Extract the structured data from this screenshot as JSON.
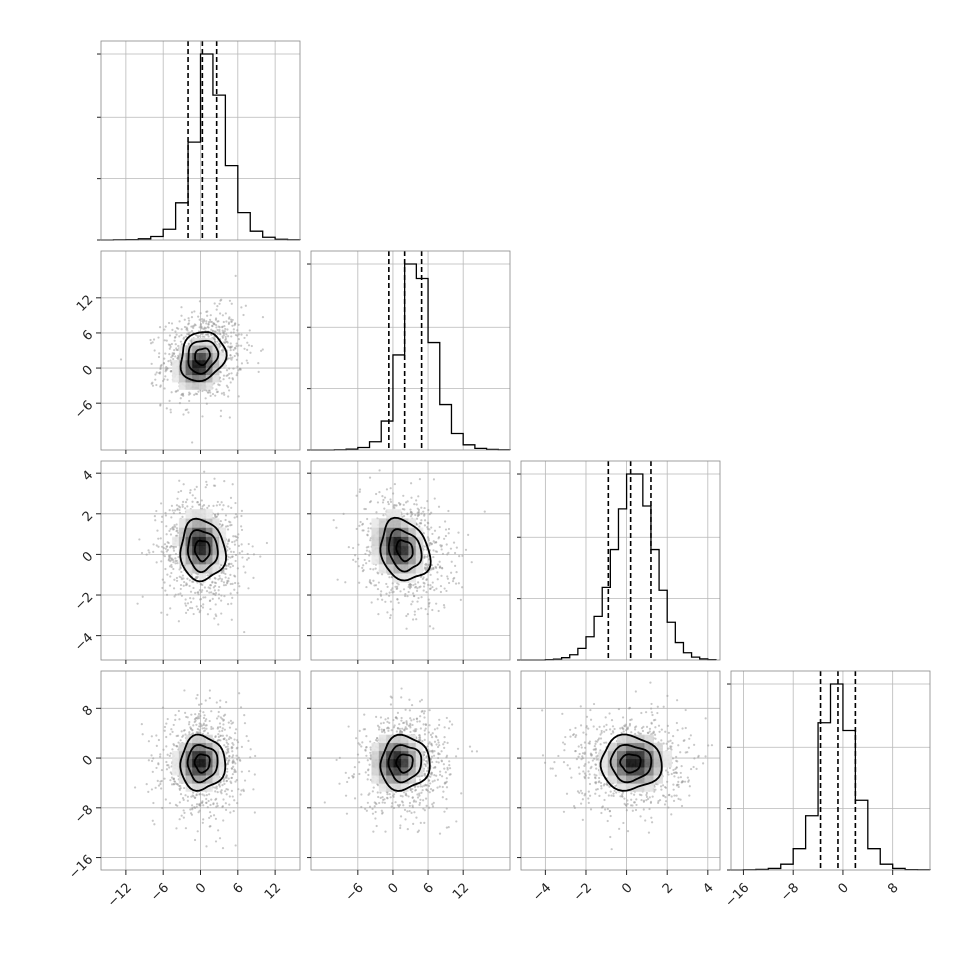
{
  "chart_data": {
    "type": "corner",
    "n_parameters": 4,
    "colors": {
      "line": "#000000",
      "scatter": "#9a9a9a",
      "grid": "#b8b8b8",
      "frame": "#888888",
      "density_dark": "#000000",
      "density_light": "#ffffff"
    },
    "grid": true,
    "parameters": [
      {
        "range": [
          -16,
          16
        ],
        "ticks": [
          -12,
          -6,
          0,
          6,
          12
        ],
        "tick_labels": [
          "−12",
          "−6",
          "0",
          "6",
          "12"
        ],
        "mean": 0.3,
        "sd": 2.4,
        "quantiles": [
          -2.0,
          0.3,
          2.6
        ],
        "hist_bins": [
          -16,
          -14,
          -12,
          -10,
          -8,
          -6,
          -4,
          -2,
          0,
          2,
          4,
          6,
          8,
          10,
          12,
          14,
          16
        ],
        "hist_values": [
          0,
          1,
          2,
          6,
          18,
          55,
          190,
          500,
          950,
          740,
          380,
          140,
          45,
          14,
          4,
          1
        ]
      },
      {
        "range": [
          -14,
          20
        ],
        "ticks": [
          -6,
          0,
          6,
          12
        ],
        "tick_labels": [
          "−6",
          "0",
          "6",
          "12"
        ],
        "mean": 2.0,
        "sd": 2.8,
        "quantiles": [
          -0.7,
          2.0,
          4.9
        ],
        "hist_bins": [
          -14,
          -12,
          -10,
          -8,
          -6,
          -4,
          -2,
          0,
          2,
          4,
          6,
          8,
          10,
          12,
          14,
          16,
          18,
          20
        ],
        "hist_values": [
          0,
          0,
          1,
          4,
          12,
          40,
          140,
          460,
          900,
          830,
          520,
          220,
          80,
          25,
          8,
          3,
          1
        ]
      },
      {
        "range": [
          -5.2,
          4.6
        ],
        "ticks": [
          -4,
          -2,
          0,
          2,
          4
        ],
        "tick_labels": [
          "−4",
          "−2",
          "0",
          "2",
          "4"
        ],
        "mean": 0.2,
        "sd": 1.0,
        "quantiles": [
          -0.9,
          0.2,
          1.2
        ],
        "hist_bins": [
          -5.2,
          -4.8,
          -4.4,
          -4.0,
          -3.6,
          -3.2,
          -2.8,
          -2.4,
          -2.0,
          -1.6,
          -1.2,
          -0.8,
          -0.4,
          0.0,
          0.4,
          0.8,
          1.2,
          1.6,
          2.0,
          2.4,
          2.8,
          3.2,
          3.6,
          4.0,
          4.4
        ],
        "hist_values": [
          0,
          0,
          0,
          1,
          3,
          8,
          18,
          40,
          80,
          150,
          250,
          380,
          520,
          640,
          640,
          530,
          380,
          240,
          130,
          60,
          25,
          10,
          4,
          1
        ]
      },
      {
        "range": [
          -18,
          14
        ],
        "ticks": [
          -16,
          -8,
          0,
          8
        ],
        "tick_labels": [
          "−16",
          "−8",
          "0",
          "8"
        ],
        "mean": -0.8,
        "sd": 2.9,
        "quantiles": [
          -3.6,
          -0.8,
          2.0
        ],
        "hist_bins": [
          -18,
          -16,
          -14,
          -12,
          -10,
          -8,
          -6,
          -4,
          -2,
          0,
          2,
          4,
          6,
          8,
          10,
          12,
          14
        ],
        "hist_values": [
          0,
          1,
          3,
          8,
          30,
          110,
          280,
          760,
          960,
          720,
          360,
          110,
          30,
          8,
          2,
          1
        ]
      }
    ],
    "correlations": {
      "1-0": 0.15,
      "2-0": -0.05,
      "2-1": -0.2,
      "3-0": 0.02,
      "3-1": 0.04,
      "3-2": 0.0
    },
    "density_peaks": {
      "1-0": [
        -0.3,
        0.5
      ],
      "2-0": [
        -0.1,
        0.5
      ],
      "2-1": [
        0.8,
        0.4
      ],
      "3-0": [
        -0.2,
        -0.6
      ],
      "3-1": [
        0.6,
        -0.6
      ],
      "3-2": [
        0.4,
        -0.6
      ]
    }
  }
}
